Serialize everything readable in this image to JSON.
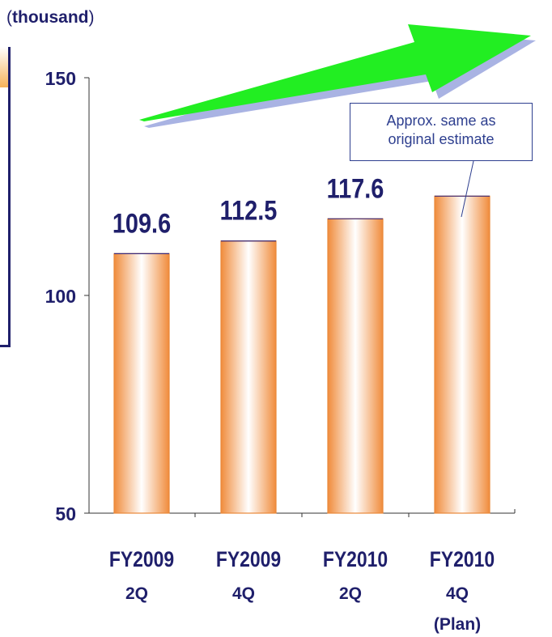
{
  "chart_data": {
    "type": "bar",
    "unit": "(thousand)",
    "unit_text": "thousand",
    "categories": [
      [
        "FY2009",
        "2Q"
      ],
      [
        "FY2009",
        "4Q"
      ],
      [
        "FY2010",
        "2Q"
      ],
      [
        "FY2010",
        "4Q",
        "(Plan)"
      ]
    ],
    "values": [
      109.6,
      112.5,
      117.6,
      122.8
    ],
    "data_labels": [
      "109.6",
      "112.5",
      "117.6",
      ""
    ],
    "ylim": [
      50,
      150
    ],
    "yticks": [
      "50",
      "100",
      "150"
    ],
    "title": "",
    "xlabel": "",
    "ylabel": "",
    "grid": false,
    "annotation": [
      "Approx. same as",
      "original estimate"
    ],
    "colors": {
      "bar_edge": "#e9883a",
      "bar_center": "#ffffff",
      "bar_outer": "#f39a4e",
      "text": "#1f1f6b",
      "arrow": "#22ee22",
      "arrow_shadow": "#a9b3e3",
      "callout": "#2e3f8f"
    }
  }
}
